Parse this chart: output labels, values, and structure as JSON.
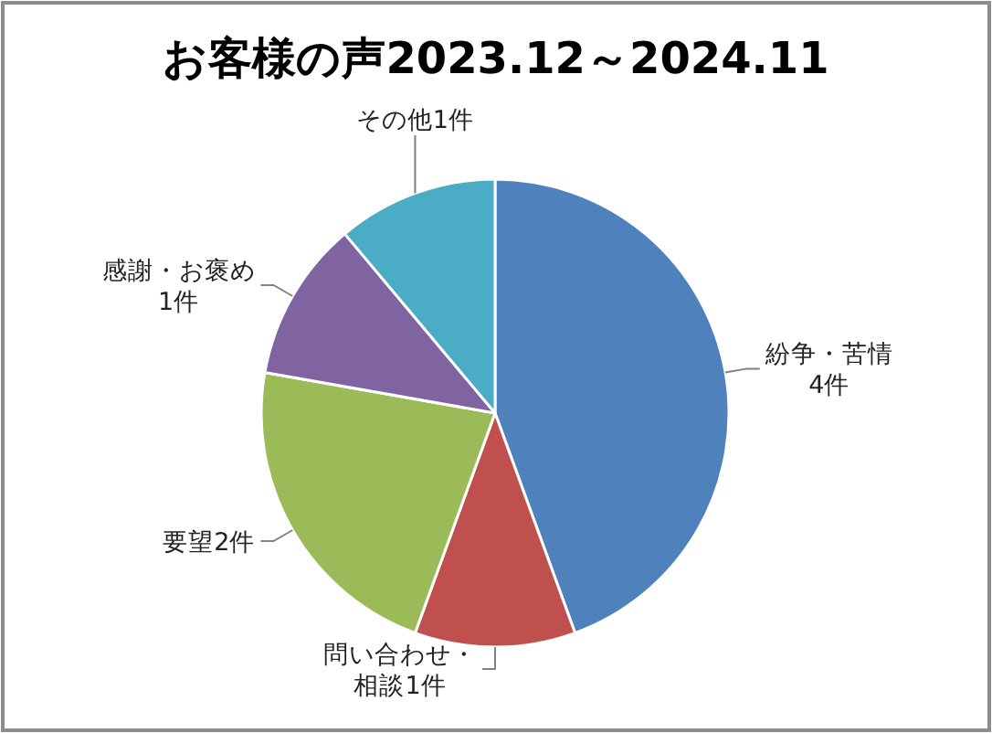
{
  "chart_data": {
    "type": "pie",
    "title": "お客様の声2023.12～2024.11",
    "categories": [
      "紛争・苦情",
      "問い合わせ・相談",
      "要望",
      "感謝・お褒め",
      "その他"
    ],
    "values": [
      4,
      1,
      2,
      1,
      1
    ],
    "colors": [
      "#4f81bd",
      "#c0504d",
      "#9bbb59",
      "#8064a2",
      "#4bacc6"
    ],
    "value_labels": [
      "4件",
      "1件",
      "2件",
      "1件",
      "1件"
    ]
  }
}
